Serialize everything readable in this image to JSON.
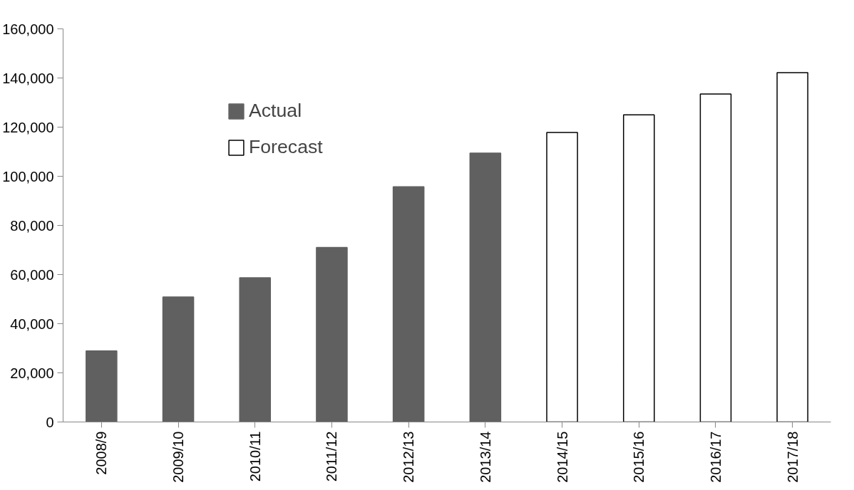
{
  "chart_data": {
    "type": "bar",
    "categories": [
      "2008/9",
      "2009/10",
      "2010/11",
      "2011/12",
      "2012/13",
      "2013/14",
      "2014/15",
      "2015/16",
      "2016/17",
      "2017/18"
    ],
    "series": [
      {
        "name": "Actual",
        "color": "#606060",
        "values": [
          28900,
          50900,
          58700,
          71000,
          95700,
          109400,
          null,
          null,
          null,
          null
        ]
      },
      {
        "name": "Forecast",
        "color": "#ffffff",
        "values": [
          null,
          null,
          null,
          null,
          null,
          null,
          117800,
          125000,
          133500,
          142200
        ]
      }
    ],
    "ylim": [
      0,
      160000
    ],
    "yticks": [
      {
        "value": 0,
        "label": "0"
      },
      {
        "value": 20000,
        "label": "20,000"
      },
      {
        "value": 40000,
        "label": "40,000"
      },
      {
        "value": 60000,
        "label": "60,000"
      },
      {
        "value": 80000,
        "label": "80,000"
      },
      {
        "value": 100000,
        "label": "100,000"
      },
      {
        "value": 120000,
        "label": "120,000"
      },
      {
        "value": 140000,
        "label": "140,000"
      },
      {
        "value": 160000,
        "label": "160,000"
      }
    ],
    "grid": false,
    "legend": "top left"
  }
}
